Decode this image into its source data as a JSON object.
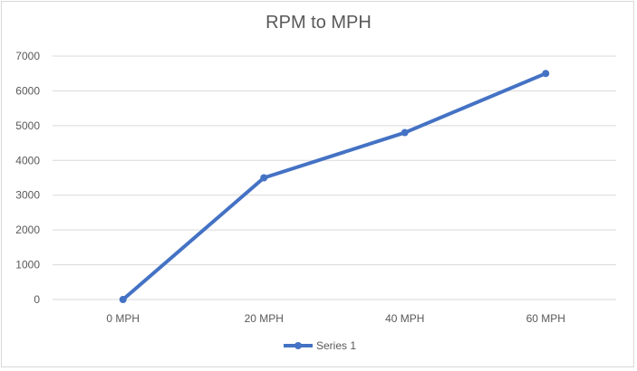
{
  "chart_data": {
    "type": "line",
    "title": "RPM to MPH",
    "xlabel": "",
    "ylabel": "",
    "categories": [
      "0 MPH",
      "20 MPH",
      "40 MPH",
      "60 MPH"
    ],
    "series": [
      {
        "name": "Series 1",
        "values": [
          0,
          3500,
          4800,
          6500
        ],
        "color": "#4472C4"
      }
    ],
    "ylim": [
      0,
      7000
    ],
    "yticks": [
      0,
      1000,
      2000,
      3000,
      4000,
      5000,
      6000,
      7000
    ],
    "grid": true,
    "legend": "bottom"
  }
}
